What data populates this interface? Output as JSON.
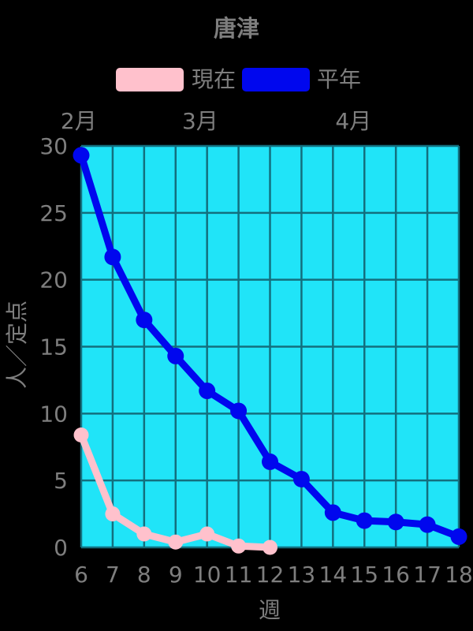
{
  "title": "唐津",
  "legend": {
    "items": [
      {
        "label": "現在",
        "color": "#FFC1CC"
      },
      {
        "label": "平年",
        "color": "#0007EE"
      }
    ]
  },
  "chart_data": {
    "type": "line",
    "title": "唐津",
    "xlabel": "週",
    "ylabel": "人／定点",
    "xlim": [
      6,
      18
    ],
    "ylim": [
      0,
      30
    ],
    "xticks": [
      6,
      7,
      8,
      9,
      10,
      11,
      12,
      13,
      14,
      15,
      16,
      17,
      18
    ],
    "yticks": [
      0,
      5,
      10,
      15,
      20,
      25,
      30
    ],
    "top_axis_months": [
      {
        "label": "2月",
        "week": 5.92
      },
      {
        "label": "3月",
        "week": 9.78
      },
      {
        "label": "4月",
        "week": 14.65
      }
    ],
    "grid": true,
    "legend_position": "top",
    "series": [
      {
        "name": "現在",
        "color": "#FFC1CC",
        "x": [
          6,
          7,
          8,
          9,
          10,
          11,
          12
        ],
        "values": [
          8.4,
          2.5,
          1.0,
          0.4,
          1.0,
          0.1,
          0.0
        ],
        "marker_radius": 9.5,
        "line_width": 9
      },
      {
        "name": "平年",
        "color": "#0007EE",
        "x": [
          6,
          7,
          8,
          9,
          10,
          11,
          12,
          13,
          14,
          15,
          16,
          17,
          18
        ],
        "values": [
          29.3,
          21.7,
          17.0,
          14.3,
          11.7,
          10.2,
          6.4,
          5.1,
          2.6,
          2.0,
          1.9,
          1.7,
          0.8
        ],
        "marker_radius": 10.5,
        "line_width": 9
      }
    ],
    "colors": {
      "background": "#000000",
      "plot_background": "#20E4F8",
      "grid": "#136F7E",
      "text": "#7E7E7E"
    }
  }
}
